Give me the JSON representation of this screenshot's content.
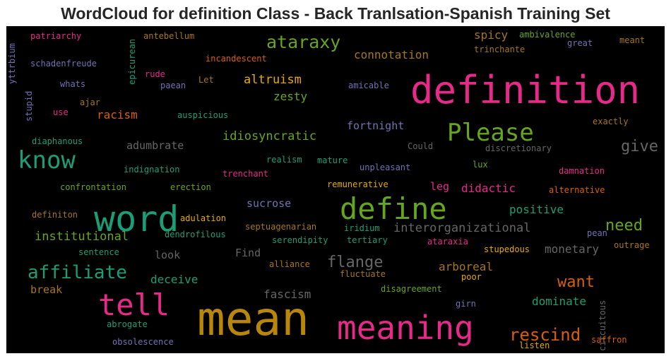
{
  "chart_data": {
    "type": "wordcloud",
    "title": "WordCloud for definition Class - Back Tranlsation-Spanish Training Set",
    "colors": {
      "pink": "#e7298a",
      "green": "#66a61e",
      "teal": "#1b9e77",
      "orange": "#d95f02",
      "gold": "#b8860b",
      "amber": "#e6ab02",
      "purple": "#7570b3",
      "grey": "#666666",
      "brown": "#a6761d"
    },
    "words": [
      {
        "text": "definition"
      },
      {
        "text": "mean"
      },
      {
        "text": "meaning"
      },
      {
        "text": "word"
      },
      {
        "text": "define"
      },
      {
        "text": "tell"
      },
      {
        "text": "Please"
      },
      {
        "text": "know"
      },
      {
        "text": "affiliate"
      },
      {
        "text": "ataraxy"
      },
      {
        "text": "rescind"
      },
      {
        "text": "need"
      },
      {
        "text": "give"
      },
      {
        "text": "flange"
      },
      {
        "text": "want"
      },
      {
        "text": "interorganizational"
      },
      {
        "text": "institutional"
      },
      {
        "text": "altruism"
      },
      {
        "text": "connotation"
      },
      {
        "text": "idiosyncratic"
      },
      {
        "text": "didactic"
      },
      {
        "text": "positive"
      },
      {
        "text": "monetary"
      },
      {
        "text": "arboreal"
      },
      {
        "text": "dominate"
      },
      {
        "text": "deceive"
      },
      {
        "text": "fascism"
      },
      {
        "text": "spicy"
      },
      {
        "text": "zesty"
      },
      {
        "text": "racism"
      },
      {
        "text": "fortnight"
      },
      {
        "text": "adumbrate"
      },
      {
        "text": "sucrose"
      },
      {
        "text": "leg"
      },
      {
        "text": "look"
      },
      {
        "text": "Find"
      },
      {
        "text": "break"
      },
      {
        "text": "patriarchy"
      },
      {
        "text": "antebellum"
      },
      {
        "text": "ambivalence"
      },
      {
        "text": "meant"
      },
      {
        "text": "great"
      },
      {
        "text": "trinchante"
      },
      {
        "text": "incandescent"
      },
      {
        "text": "schadenfreude"
      },
      {
        "text": "yttrbium"
      },
      {
        "text": "epicurean"
      },
      {
        "text": "whats"
      },
      {
        "text": "rude"
      },
      {
        "text": "paean"
      },
      {
        "text": "Let"
      },
      {
        "text": "amicable"
      },
      {
        "text": "stupid"
      },
      {
        "text": "ajar"
      },
      {
        "text": "use"
      },
      {
        "text": "auspicious"
      },
      {
        "text": "exactly"
      },
      {
        "text": "diaphanous"
      },
      {
        "text": "Could"
      },
      {
        "text": "discretionary"
      },
      {
        "text": "realism"
      },
      {
        "text": "mature"
      },
      {
        "text": "indignation"
      },
      {
        "text": "trenchant"
      },
      {
        "text": "unpleasant"
      },
      {
        "text": "lux"
      },
      {
        "text": "damnation"
      },
      {
        "text": "confrontation"
      },
      {
        "text": "erection"
      },
      {
        "text": "remunerative"
      },
      {
        "text": "alternative"
      },
      {
        "text": "definiton"
      },
      {
        "text": "adulation"
      },
      {
        "text": "dendrofilous"
      },
      {
        "text": "septuagenarian"
      },
      {
        "text": "iridium"
      },
      {
        "text": "pean"
      },
      {
        "text": "serendipity"
      },
      {
        "text": "tertiary"
      },
      {
        "text": "ataraxia"
      },
      {
        "text": "outrage"
      },
      {
        "text": "sentence"
      },
      {
        "text": "stupedous"
      },
      {
        "text": "alliance"
      },
      {
        "text": "fluctuate"
      },
      {
        "text": "poor"
      },
      {
        "text": "circuitous"
      },
      {
        "text": "disagreement"
      },
      {
        "text": "girn"
      },
      {
        "text": "abrogate"
      },
      {
        "text": "obsolescence"
      },
      {
        "text": "listen"
      },
      {
        "text": "saffron"
      }
    ]
  }
}
